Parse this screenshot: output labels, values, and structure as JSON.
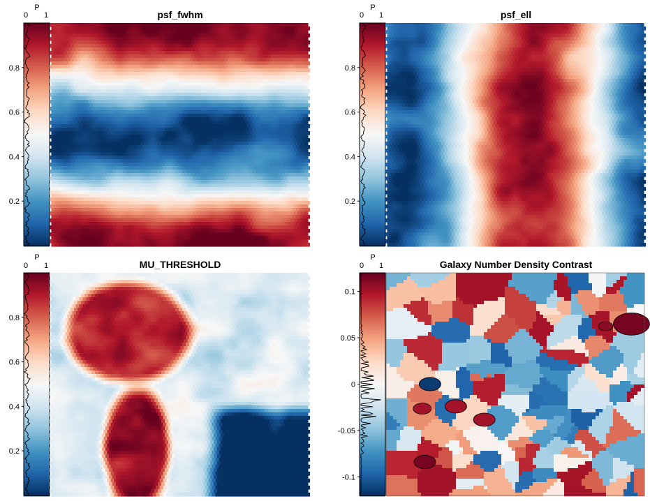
{
  "chart_data": [
    {
      "type": "heatmap",
      "title": "psf_fwhm",
      "pattern": "horizontal_bands",
      "colorbar": {
        "label": "P",
        "range": [
          0,
          1
        ],
        "ticks": [
          "0.2",
          "0.4",
          "0.6",
          "0.8"
        ],
        "tick_values": [
          0.2,
          0.4,
          0.6,
          0.8
        ],
        "hist_range": [
          "0",
          "1"
        ]
      }
    },
    {
      "type": "heatmap",
      "title": "psf_ell",
      "pattern": "vertical_bands",
      "colorbar": {
        "label": "P",
        "range": [
          0,
          1
        ],
        "ticks": [
          "0.2",
          "0.4",
          "0.6",
          "0.8"
        ],
        "tick_values": [
          0.2,
          0.4,
          0.6,
          0.8
        ],
        "hist_range": [
          "0",
          "1"
        ]
      }
    },
    {
      "type": "heatmap",
      "title": "MU_THRESHOLD",
      "pattern": "blob_and_block",
      "colorbar": {
        "label": "P",
        "range": [
          0,
          1
        ],
        "ticks": [
          "0.2",
          "0.4",
          "0.6",
          "0.8"
        ],
        "tick_values": [
          0.2,
          0.4,
          0.6,
          0.8
        ],
        "hist_range": [
          "0",
          "1"
        ]
      }
    },
    {
      "type": "heatmap",
      "title": "Galaxy Number Density Contrast",
      "pattern": "patches",
      "colorbar": {
        "label": "P",
        "range": [
          -0.12,
          0.12
        ],
        "ticks": [
          "-0.1",
          "-0.05",
          "0",
          "0.05",
          "0.1"
        ],
        "tick_values": [
          -0.1,
          -0.05,
          0,
          0.05,
          0.1
        ],
        "hist_range": [
          "0",
          "1"
        ]
      }
    }
  ]
}
